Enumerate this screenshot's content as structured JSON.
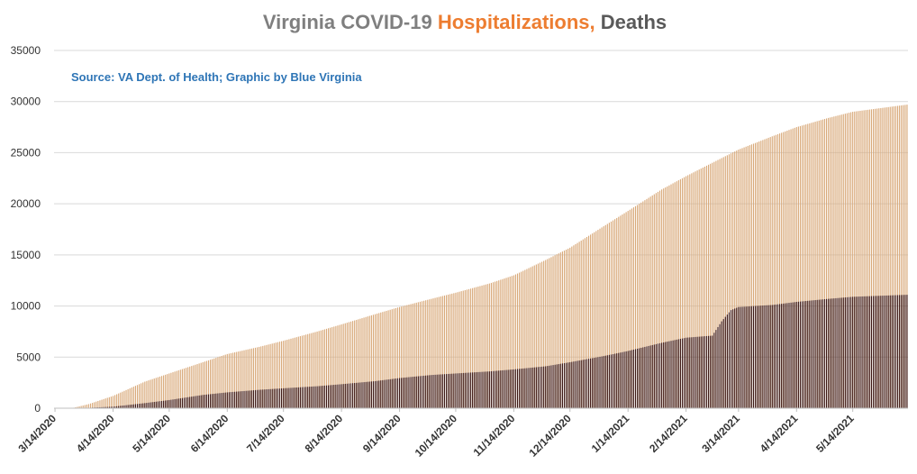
{
  "colors": {
    "title_prefix": "#7f7f7f",
    "hospitalizations": "#ed7d31",
    "deaths_title": "#595959",
    "hosp_bar": "#d8a878",
    "death_bar": "#3a1512",
    "source_text": "#2e75b6",
    "grid": "#d9d9d9"
  },
  "chart_data": {
    "type": "bar",
    "stacked": false,
    "title": {
      "prefix": "Virginia COVID-19 ",
      "hospitalizations": "Hospitalizations,",
      "deaths": " Deaths"
    },
    "annotation": "Source: VA Dept. of Health; Graphic by Blue Virginia",
    "ylim": [
      0,
      35000
    ],
    "yticks": [
      "0",
      "5000",
      "10000",
      "15000",
      "20000",
      "25000",
      "30000",
      "35000"
    ],
    "x_start": "2020-03-14",
    "x_end": "2021-06-12",
    "xticks": [
      "3/14/2020",
      "4/14/2020",
      "5/14/2020",
      "6/14/2020",
      "7/14/2020",
      "8/14/2020",
      "9/14/2020",
      "10/14/2020",
      "11/14/2020",
      "12/14/2020",
      "1/14/2021",
      "2/14/2021",
      "3/14/2021",
      "4/14/2021",
      "5/14/2021"
    ],
    "grid": true,
    "legend": "none",
    "series": [
      {
        "key": "hospitalizations",
        "points": [
          [
            "2020-03-14",
            0
          ],
          [
            "2020-03-24",
            50
          ],
          [
            "2020-04-01",
            400
          ],
          [
            "2020-04-14",
            1200
          ],
          [
            "2020-05-01",
            2600
          ],
          [
            "2020-05-14",
            3400
          ],
          [
            "2020-06-01",
            4500
          ],
          [
            "2020-06-14",
            5300
          ],
          [
            "2020-07-01",
            6000
          ],
          [
            "2020-07-14",
            6600
          ],
          [
            "2020-08-01",
            7500
          ],
          [
            "2020-08-14",
            8200
          ],
          [
            "2020-09-01",
            9200
          ],
          [
            "2020-09-14",
            9900
          ],
          [
            "2020-10-01",
            10700
          ],
          [
            "2020-10-14",
            11300
          ],
          [
            "2020-11-01",
            12200
          ],
          [
            "2020-11-14",
            13000
          ],
          [
            "2020-12-01",
            14500
          ],
          [
            "2020-12-14",
            15700
          ],
          [
            "2021-01-01",
            17800
          ],
          [
            "2021-01-14",
            19300
          ],
          [
            "2021-02-01",
            21400
          ],
          [
            "2021-02-14",
            22700
          ],
          [
            "2021-03-01",
            24100
          ],
          [
            "2021-03-14",
            25300
          ],
          [
            "2021-04-01",
            26600
          ],
          [
            "2021-04-14",
            27500
          ],
          [
            "2021-05-01",
            28400
          ],
          [
            "2021-05-14",
            29000
          ],
          [
            "2021-06-12",
            29700
          ]
        ]
      },
      {
        "key": "deaths",
        "points": [
          [
            "2020-03-14",
            0
          ],
          [
            "2020-04-01",
            40
          ],
          [
            "2020-04-14",
            150
          ],
          [
            "2020-05-01",
            500
          ],
          [
            "2020-05-14",
            800
          ],
          [
            "2020-06-01",
            1300
          ],
          [
            "2020-06-14",
            1550
          ],
          [
            "2020-07-01",
            1800
          ],
          [
            "2020-07-14",
            1950
          ],
          [
            "2020-08-01",
            2150
          ],
          [
            "2020-08-14",
            2350
          ],
          [
            "2020-09-01",
            2650
          ],
          [
            "2020-09-14",
            2950
          ],
          [
            "2020-10-01",
            3250
          ],
          [
            "2020-10-14",
            3400
          ],
          [
            "2020-11-01",
            3600
          ],
          [
            "2020-11-14",
            3800
          ],
          [
            "2020-12-01",
            4100
          ],
          [
            "2020-12-14",
            4500
          ],
          [
            "2021-01-01",
            5100
          ],
          [
            "2021-01-14",
            5600
          ],
          [
            "2021-02-01",
            6400
          ],
          [
            "2021-02-14",
            6900
          ],
          [
            "2021-02-28",
            7100
          ],
          [
            "2021-03-05",
            8500
          ],
          [
            "2021-03-10",
            9600
          ],
          [
            "2021-03-14",
            9900
          ],
          [
            "2021-04-01",
            10100
          ],
          [
            "2021-04-14",
            10400
          ],
          [
            "2021-05-01",
            10700
          ],
          [
            "2021-05-14",
            10900
          ],
          [
            "2021-06-12",
            11100
          ]
        ]
      }
    ]
  }
}
